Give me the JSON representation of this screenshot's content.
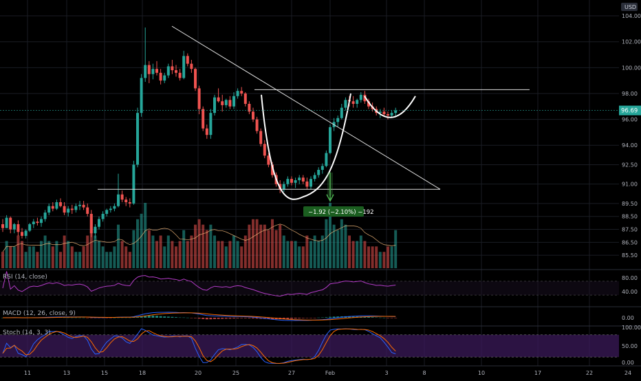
{
  "chart_data": {
    "type": "candlestick",
    "currency": "USD",
    "last_price_label": "96.69",
    "price_axis": {
      "range": [
        84.5,
        104.8
      ],
      "ticks": [
        "104.00",
        "102.00",
        "100.00",
        "98.00",
        "96.00",
        "94.00",
        "92.50",
        "91.00",
        "89.50",
        "88.50",
        "87.50",
        "86.50",
        "85.50"
      ]
    },
    "date_axis": {
      "tick_labels": [
        "11",
        "13",
        "15",
        "18",
        "20",
        "25",
        "27",
        "Feb",
        "3",
        "8",
        "10",
        "17",
        "22",
        "24"
      ]
    },
    "candles": [
      [
        87.9,
        88.3,
        87.3,
        87.6
      ],
      [
        87.6,
        88.6,
        87.6,
        88.4
      ],
      [
        88.4,
        88.5,
        87.2,
        87.5
      ],
      [
        87.5,
        88.0,
        87.2,
        87.9
      ],
      [
        87.9,
        88.2,
        87.0,
        87.3
      ],
      [
        87.3,
        87.6,
        86.8,
        87.0
      ],
      [
        87.0,
        87.5,
        86.8,
        87.4
      ],
      [
        87.4,
        88.0,
        87.3,
        87.9
      ],
      [
        87.9,
        88.3,
        87.6,
        88.1
      ],
      [
        88.1,
        88.4,
        87.8,
        88.0
      ],
      [
        88.0,
        88.5,
        87.7,
        88.3
      ],
      [
        88.3,
        89.0,
        88.1,
        88.8
      ],
      [
        88.8,
        89.5,
        88.6,
        89.3
      ],
      [
        89.3,
        89.6,
        88.9,
        89.1
      ],
      [
        89.1,
        89.8,
        89.0,
        89.6
      ],
      [
        89.6,
        89.9,
        89.2,
        89.3
      ],
      [
        89.3,
        89.6,
        88.6,
        88.8
      ],
      [
        88.8,
        89.3,
        88.5,
        89.1
      ],
      [
        89.1,
        89.4,
        88.7,
        89.0
      ],
      [
        89.0,
        89.5,
        88.8,
        89.3
      ],
      [
        89.3,
        89.7,
        89.0,
        89.4
      ],
      [
        89.4,
        89.7,
        89.0,
        89.2
      ],
      [
        89.2,
        89.5,
        88.5,
        88.7
      ],
      [
        88.7,
        89.0,
        86.9,
        87.2
      ],
      [
        87.2,
        87.9,
        86.8,
        87.7
      ],
      [
        87.7,
        88.5,
        87.5,
        88.3
      ],
      [
        88.3,
        88.9,
        88.1,
        88.7
      ],
      [
        88.7,
        89.1,
        88.5,
        89.0
      ],
      [
        89.0,
        89.3,
        88.8,
        89.1
      ],
      [
        89.1,
        89.5,
        88.9,
        89.3
      ],
      [
        89.3,
        91.8,
        89.2,
        90.2
      ],
      [
        90.2,
        90.5,
        89.6,
        89.8
      ],
      [
        89.8,
        90.0,
        89.3,
        89.6
      ],
      [
        89.6,
        89.9,
        89.2,
        89.5
      ],
      [
        89.5,
        92.8,
        89.4,
        92.5
      ],
      [
        92.5,
        96.9,
        92.3,
        96.5
      ],
      [
        96.5,
        99.5,
        96.2,
        99.2
      ],
      [
        99.2,
        103.1,
        98.9,
        100.2
      ],
      [
        100.2,
        100.5,
        98.8,
        99.5
      ],
      [
        99.5,
        100.3,
        99.1,
        99.9
      ],
      [
        99.9,
        100.5,
        99.4,
        99.6
      ],
      [
        99.6,
        99.9,
        98.7,
        99.0
      ],
      [
        99.0,
        99.6,
        98.8,
        99.4
      ],
      [
        99.4,
        100.3,
        99.2,
        100.1
      ],
      [
        100.1,
        100.6,
        99.5,
        99.8
      ],
      [
        99.8,
        100.2,
        99.3,
        99.6
      ],
      [
        99.6,
        99.9,
        99.0,
        99.2
      ],
      [
        99.2,
        101.3,
        99.1,
        100.9
      ],
      [
        100.9,
        101.1,
        100.1,
        100.3
      ],
      [
        100.3,
        100.6,
        99.6,
        99.9
      ],
      [
        99.9,
        100.0,
        98.2,
        98.4
      ],
      [
        98.4,
        98.6,
        96.4,
        96.8
      ],
      [
        96.8,
        97.0,
        95.1,
        95.3
      ],
      [
        95.3,
        95.6,
        94.5,
        94.8
      ],
      [
        94.8,
        96.8,
        94.5,
        96.5
      ],
      [
        96.5,
        97.9,
        96.3,
        97.7
      ],
      [
        97.7,
        98.4,
        97.3,
        97.4
      ],
      [
        97.4,
        97.9,
        96.6,
        97.1
      ],
      [
        97.1,
        97.6,
        96.9,
        97.5
      ],
      [
        97.5,
        97.8,
        96.8,
        97.0
      ],
      [
        97.0,
        98.1,
        96.8,
        97.8
      ],
      [
        97.8,
        98.4,
        97.6,
        98.2
      ],
      [
        98.2,
        98.5,
        97.8,
        98.0
      ],
      [
        98.0,
        98.1,
        97.0,
        97.2
      ],
      [
        97.2,
        97.4,
        96.4,
        96.6
      ],
      [
        96.6,
        96.9,
        95.8,
        96.0
      ],
      [
        96.0,
        96.2,
        94.9,
        95.1
      ],
      [
        95.1,
        95.3,
        93.9,
        94.1
      ],
      [
        94.1,
        94.4,
        93.0,
        93.2
      ],
      [
        93.2,
        93.4,
        92.3,
        92.5
      ],
      [
        92.5,
        92.7,
        91.5,
        91.7
      ],
      [
        91.7,
        91.9,
        90.8,
        91.0
      ],
      [
        91.0,
        91.3,
        90.3,
        90.6
      ],
      [
        90.6,
        91.2,
        90.4,
        91.0
      ],
      [
        91.0,
        91.6,
        90.8,
        91.4
      ],
      [
        91.4,
        91.6,
        90.9,
        91.1
      ],
      [
        91.1,
        91.5,
        90.7,
        91.3
      ],
      [
        91.3,
        91.7,
        91.0,
        91.5
      ],
      [
        91.5,
        91.7,
        91.0,
        91.2
      ],
      [
        91.2,
        91.5,
        90.6,
        90.8
      ],
      [
        90.8,
        91.6,
        90.6,
        91.4
      ],
      [
        91.4,
        91.9,
        91.2,
        91.7
      ],
      [
        91.7,
        92.3,
        91.5,
        92.1
      ],
      [
        92.1,
        92.6,
        91.8,
        92.4
      ],
      [
        92.4,
        93.6,
        92.3,
        93.4
      ],
      [
        93.4,
        95.6,
        93.3,
        95.4
      ],
      [
        95.4,
        96.1,
        95.1,
        95.8
      ],
      [
        95.8,
        96.3,
        95.4,
        96.1
      ],
      [
        96.1,
        97.2,
        96.0,
        96.9
      ],
      [
        96.9,
        97.7,
        96.7,
        97.5
      ],
      [
        97.5,
        97.8,
        97.0,
        97.4
      ],
      [
        97.4,
        97.8,
        96.9,
        97.2
      ],
      [
        97.2,
        97.6,
        96.9,
        97.5
      ],
      [
        97.5,
        98.1,
        97.3,
        97.9
      ],
      [
        97.9,
        98.2,
        97.2,
        97.4
      ],
      [
        97.4,
        97.6,
        96.8,
        97.0
      ],
      [
        97.0,
        97.3,
        96.6,
        96.8
      ],
      [
        96.8,
        97.0,
        96.3,
        96.5
      ],
      [
        96.5,
        96.8,
        96.1,
        96.6
      ],
      [
        96.6,
        96.9,
        96.2,
        96.4
      ],
      [
        96.4,
        96.6,
        96.0,
        96.3
      ],
      [
        96.3,
        96.7,
        96.1,
        96.5
      ],
      [
        96.5,
        96.9,
        96.2,
        96.69
      ]
    ],
    "volume_data": [
      3,
      5,
      4,
      4,
      6,
      5,
      3,
      4,
      4,
      3,
      5,
      6,
      5,
      4,
      5,
      3,
      6,
      5,
      4,
      3,
      3,
      4,
      6,
      9,
      6,
      5,
      4,
      3,
      3,
      4,
      8,
      5,
      4,
      3,
      7,
      9,
      10,
      12,
      7,
      6,
      5,
      6,
      4,
      6,
      5,
      4,
      5,
      7,
      5,
      6,
      8,
      9,
      8,
      7,
      8,
      6,
      5,
      5,
      4,
      5,
      6,
      5,
      4,
      6,
      8,
      9,
      9,
      8,
      8,
      7,
      9,
      7,
      8,
      6,
      5,
      5,
      5,
      4,
      4,
      6,
      5,
      6,
      5,
      6,
      9,
      12,
      8,
      7,
      9,
      8,
      6,
      5,
      5,
      6,
      5,
      4,
      4,
      4,
      3,
      3,
      4,
      4,
      7
    ],
    "drawings": {
      "measure_label": "−1.92 (−2.10%) −192"
    },
    "indicators": {
      "rsi": {
        "label": "RSI (14, close)",
        "ticks": [
          "80.00",
          "40.00"
        ],
        "levels": [
          70,
          30
        ]
      },
      "macd": {
        "label": "MACD (12, 26, close, 9)",
        "ticks": [
          "0.00"
        ]
      },
      "stoch": {
        "label": "Stoch (14, 3, 3)",
        "ticks": [
          "100.00",
          "50.00",
          "0.00"
        ],
        "levels": [
          80,
          20
        ]
      }
    },
    "colors": {
      "up": "#26a69a",
      "down": "#ef5350",
      "rsi_line": "#b43cc8",
      "macd_line": "#2962ff",
      "signal_line": "#ff6d00",
      "stoch_k": "#2962ff",
      "stoch_d": "#ff6d00",
      "stoch_band": "#3b1a5a",
      "measure": "#4caf50"
    }
  }
}
